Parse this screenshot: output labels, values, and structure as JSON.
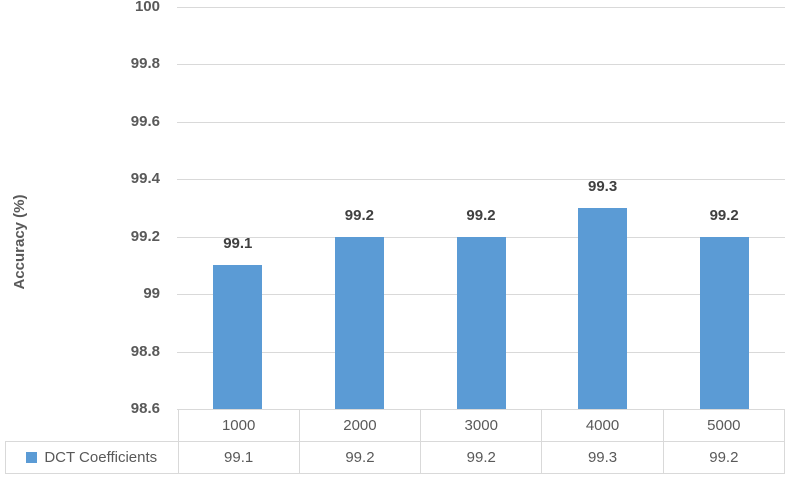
{
  "chart_data": {
    "type": "bar",
    "categories": [
      "1000",
      "2000",
      "3000",
      "4000",
      "5000"
    ],
    "series": [
      {
        "name": "DCT Coefficients",
        "values": [
          99.1,
          99.2,
          99.2,
          99.3,
          99.2
        ]
      }
    ],
    "data_labels": [
      "99.1",
      "99.2",
      "99.2",
      "99.3",
      "99.2"
    ],
    "title": "",
    "xlabel": "",
    "ylabel": "Accuracy (%)",
    "ylim": [
      98.6,
      100
    ],
    "ytick_step": 0.2,
    "ytick_labels": [
      "100",
      "99.8",
      "99.6",
      "99.4",
      "99.2",
      "99",
      "98.8",
      "98.6"
    ],
    "grid": true,
    "legend_position": "data-table-below",
    "bar_color": "#5b9bd5",
    "gridline_color": "#d9d9d9",
    "table_border_color": "#d9d9d9",
    "axis_text_color": "#595959",
    "data_label_color": "#404040"
  },
  "table": {
    "legend_label": "DCT Coefficients",
    "columns": [
      "1000",
      "2000",
      "3000",
      "4000",
      "5000"
    ],
    "values": [
      "99.1",
      "99.2",
      "99.2",
      "99.3",
      "99.2"
    ]
  }
}
